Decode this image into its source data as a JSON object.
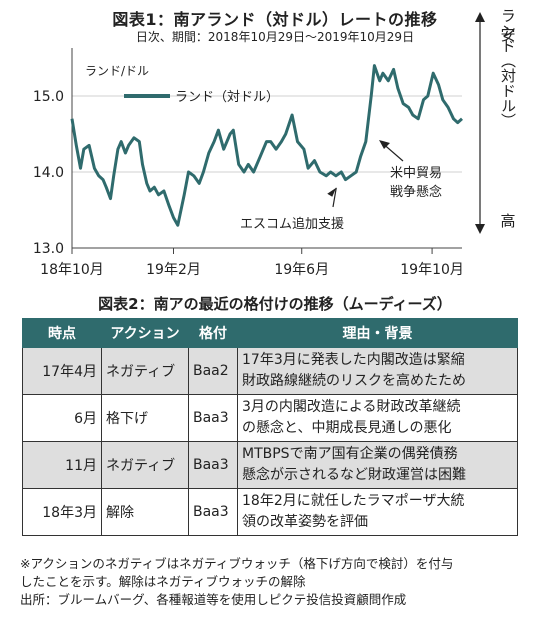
{
  "chart_data": {
    "type": "line",
    "title": "図表1：南アランド（対ドル）レートの推移",
    "subtitle": "日次、期間：2018年10月29日～2019年10月29日",
    "ylabel": "ランド/ドル",
    "series": [
      {
        "name": "ランド（対ドル）",
        "color": "#2f6b6d",
        "points": [
          [
            "2018-10-29",
            14.7
          ],
          [
            "2018-11-02",
            14.35
          ],
          [
            "2018-11-06",
            14.05
          ],
          [
            "2018-11-09",
            14.3
          ],
          [
            "2018-11-14",
            14.35
          ],
          [
            "2018-11-19",
            14.05
          ],
          [
            "2018-11-23",
            13.95
          ],
          [
            "2018-11-27",
            13.9
          ],
          [
            "2018-11-30",
            13.8
          ],
          [
            "2018-12-04",
            13.65
          ],
          [
            "2018-12-07",
            13.95
          ],
          [
            "2018-12-11",
            14.3
          ],
          [
            "2018-12-14",
            14.4
          ],
          [
            "2018-12-18",
            14.25
          ],
          [
            "2018-12-21",
            14.35
          ],
          [
            "2018-12-26",
            14.45
          ],
          [
            "2018-12-31",
            14.4
          ],
          [
            "2019-01-03",
            14.1
          ],
          [
            "2019-01-07",
            13.85
          ],
          [
            "2019-01-10",
            13.75
          ],
          [
            "2019-01-14",
            13.8
          ],
          [
            "2019-01-18",
            13.7
          ],
          [
            "2019-01-23",
            13.75
          ],
          [
            "2019-01-28",
            13.55
          ],
          [
            "2019-02-01",
            13.4
          ],
          [
            "2019-02-05",
            13.3
          ],
          [
            "2019-02-11",
            13.7
          ],
          [
            "2019-02-15",
            14.0
          ],
          [
            "2019-02-20",
            13.95
          ],
          [
            "2019-02-25",
            13.85
          ],
          [
            "2019-03-01",
            14.0
          ],
          [
            "2019-03-06",
            14.25
          ],
          [
            "2019-03-11",
            14.4
          ],
          [
            "2019-03-15",
            14.55
          ],
          [
            "2019-03-20",
            14.3
          ],
          [
            "2019-03-26",
            14.5
          ],
          [
            "2019-03-29",
            14.55
          ],
          [
            "2019-04-03",
            14.1
          ],
          [
            "2019-04-08",
            14.0
          ],
          [
            "2019-04-12",
            14.1
          ],
          [
            "2019-04-17",
            14.0
          ],
          [
            "2019-04-23",
            14.2
          ],
          [
            "2019-04-29",
            14.4
          ],
          [
            "2019-05-03",
            14.4
          ],
          [
            "2019-05-08",
            14.3
          ],
          [
            "2019-05-13",
            14.4
          ],
          [
            "2019-05-17",
            14.5
          ],
          [
            "2019-05-23",
            14.75
          ],
          [
            "2019-05-28",
            14.4
          ],
          [
            "2019-06-03",
            14.3
          ],
          [
            "2019-06-07",
            14.05
          ],
          [
            "2019-06-13",
            14.15
          ],
          [
            "2019-06-18",
            14.0
          ],
          [
            "2019-06-24",
            13.95
          ],
          [
            "2019-06-28",
            14.0
          ],
          [
            "2019-07-03",
            13.95
          ],
          [
            "2019-07-08",
            14.0
          ],
          [
            "2019-07-12",
            13.9
          ],
          [
            "2019-07-17",
            13.95
          ],
          [
            "2019-07-22",
            14.0
          ],
          [
            "2019-07-26",
            14.2
          ],
          [
            "2019-07-31",
            14.4
          ],
          [
            "2019-08-05",
            15.0
          ],
          [
            "2019-08-08",
            15.4
          ],
          [
            "2019-08-13",
            15.2
          ],
          [
            "2019-08-16",
            15.3
          ],
          [
            "2019-08-21",
            15.2
          ],
          [
            "2019-08-26",
            15.35
          ],
          [
            "2019-08-30",
            15.1
          ],
          [
            "2019-09-04",
            14.9
          ],
          [
            "2019-09-09",
            14.85
          ],
          [
            "2019-09-13",
            14.75
          ],
          [
            "2019-09-18",
            14.7
          ],
          [
            "2019-09-23",
            14.95
          ],
          [
            "2019-09-27",
            15.0
          ],
          [
            "2019-10-02",
            15.3
          ],
          [
            "2019-10-07",
            15.15
          ],
          [
            "2019-10-11",
            14.95
          ],
          [
            "2019-10-16",
            14.85
          ],
          [
            "2019-10-21",
            14.7
          ],
          [
            "2019-10-25",
            14.65
          ],
          [
            "2019-10-29",
            14.7
          ]
        ]
      }
    ],
    "ylim": [
      13.0,
      15.5
    ],
    "yticks": [
      "13.0",
      "14.0",
      "15.0"
    ],
    "xticks": [
      {
        "date": "2018-10-29",
        "label": "18年10月"
      },
      {
        "date": "2019-02-01",
        "label": "19年2月"
      },
      {
        "date": "2019-06-01",
        "label": "19年6月"
      },
      {
        "date": "2019-10-01",
        "label": "19年10月"
      }
    ],
    "grid": "horizontal",
    "legend_position": "top-left",
    "right_axis": {
      "top": "安",
      "middle": "ランド（対ドル）",
      "bottom": "高"
    },
    "annotations": [
      {
        "text": "エスコム追加支援",
        "date": "2019-07-08",
        "value": 13.95
      },
      {
        "text": "米中貿易\n戦争懸念",
        "date": "2019-08-10",
        "value": 14.4
      }
    ]
  },
  "table": {
    "title": "図表2：南アの最近の格付けの推移（ムーディーズ）",
    "headers": [
      "時点",
      "アクション",
      "格付",
      "理由・背景"
    ],
    "rows": [
      {
        "date": "17年4月",
        "action": "ネガティブ",
        "rating": "Baa2",
        "reason": [
          "17年3月に発表した内閣改造は緊縮",
          "財政路線継続のリスクを高めたため"
        ],
        "shaded": true
      },
      {
        "date": "6月",
        "action": "格下げ",
        "rating": "Baa3",
        "reason": [
          "3月の内閣改造による財政改革継続",
          "の懸念と、中期成長見通しの悪化"
        ],
        "shaded": false
      },
      {
        "date": "11月",
        "action": "ネガティブ",
        "rating": "Baa3",
        "reason": [
          "MTBPSで南ア国有企業の偶発債務",
          "懸念が示されるなど財政運営は困難"
        ],
        "shaded": true
      },
      {
        "date": "18年3月",
        "action": "解除",
        "rating": "Baa3",
        "reason": [
          "18年2月に就任したラマポーザ大統",
          "領の改革姿勢を評価"
        ],
        "shaded": false
      }
    ]
  },
  "footnote": [
    "※アクションのネガティブはネガティブウォッチ（格下げ方向で検討）を付与",
    "したことを示す。解除はネガティブウォッチの解除",
    "出所：ブルームバーグ、各種報道等を使用しピクテ投信投資顧問作成"
  ]
}
